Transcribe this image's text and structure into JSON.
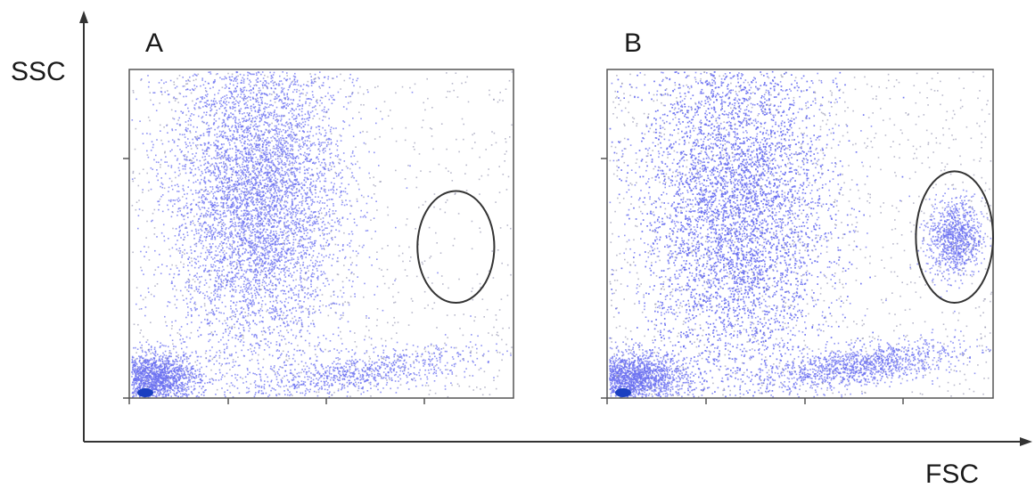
{
  "chart_data": {
    "type": "scatter",
    "xlabel": "FSC",
    "ylabel": "SSC",
    "point_color": "#6a6ff0",
    "sparse_point_color": "#8a8aa8",
    "core_color": "#1a3fc0",
    "gate_color": "#333333",
    "panels": [
      {
        "label": "A",
        "populations": [
          {
            "kind": "main",
            "x": 0.33,
            "y": 0.62,
            "sx": 0.11,
            "sy": 0.26,
            "n": 6000
          },
          {
            "kind": "debris",
            "x": 0.06,
            "y": 0.06,
            "sx": 0.06,
            "sy": 0.04,
            "n": 1800
          },
          {
            "kind": "tail",
            "x": 0.6,
            "y": 0.08,
            "sx": 0.15,
            "sy": 0.03,
            "n": 800
          },
          {
            "kind": "scatter",
            "x": 0.6,
            "y": 0.5,
            "sx": 0.3,
            "sy": 0.3,
            "n": 900
          }
        ],
        "gate": {
          "cx": 0.85,
          "cy": 0.46,
          "rx": 0.1,
          "ry": 0.17
        }
      },
      {
        "label": "B",
        "populations": [
          {
            "kind": "main",
            "x": 0.33,
            "y": 0.58,
            "sx": 0.12,
            "sy": 0.28,
            "n": 8000
          },
          {
            "kind": "debris",
            "x": 0.06,
            "y": 0.06,
            "sx": 0.07,
            "sy": 0.04,
            "n": 2000
          },
          {
            "kind": "tail",
            "x": 0.65,
            "y": 0.1,
            "sx": 0.13,
            "sy": 0.03,
            "n": 1200
          },
          {
            "kind": "cluster",
            "x": 0.9,
            "y": 0.49,
            "sx": 0.035,
            "sy": 0.06,
            "n": 900
          },
          {
            "kind": "scatter",
            "x": 0.6,
            "y": 0.5,
            "sx": 0.3,
            "sy": 0.3,
            "n": 1200
          }
        ],
        "gate": {
          "cx": 0.9,
          "cy": 0.49,
          "rx": 0.1,
          "ry": 0.2
        }
      }
    ]
  }
}
